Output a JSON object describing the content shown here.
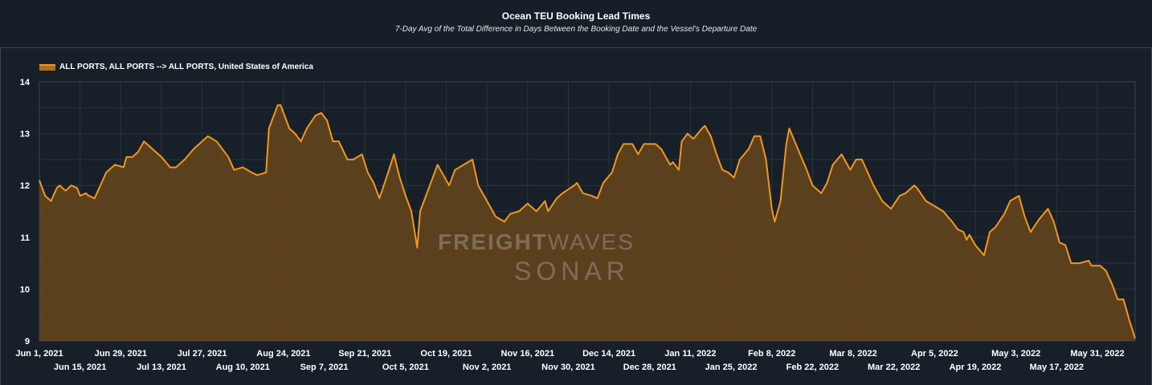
{
  "chart_data": {
    "type": "area",
    "title": "Ocean TEU Booking Lead Times",
    "subtitle": "7-Day  Avg of the Total Difference in Days Between the Booking Date and the Vessel's Departure Date",
    "xlabel": "",
    "ylabel": "",
    "xlim": [
      "2021-06-01",
      "2022-06-13"
    ],
    "ylim": [
      9,
      14
    ],
    "yticks": [
      9,
      10,
      11,
      12,
      13,
      14
    ],
    "xticks_row1": [
      "Jun 1, 2021",
      "Jun 29, 2021",
      "Jul 27, 2021",
      "Aug 24, 2021",
      "Sep 21, 2021",
      "Oct 19, 2021",
      "Nov 16, 2021",
      "Dec 14, 2021",
      "Jan 11, 2022",
      "Feb 8, 2022",
      "Mar 8, 2022",
      "Apr 5, 2022",
      "May 3, 2022",
      "May 31, 2022"
    ],
    "xticks_row2": [
      "Jun 15, 2021",
      "Jul 13, 2021",
      "Aug 10, 2021",
      "Sep 7, 2021",
      "Oct 5, 2021",
      "Nov 2, 2021",
      "Nov 30, 2021",
      "Dec 28, 2021",
      "Jan 25, 2022",
      "Feb 22, 2022",
      "Mar 22, 2022",
      "Apr 19, 2022",
      "May 17, 2022"
    ],
    "grid": true,
    "legend_position": "top-left",
    "colors": {
      "line": "#f2961e",
      "fill": "#5f421e",
      "background": "#172029",
      "grid": "#2a3440"
    },
    "series": [
      {
        "name": "ALL PORTS, ALL PORTS --> ALL PORTS, United States of America",
        "points": [
          [
            "2021-06-01",
            12.1
          ],
          [
            "2021-06-03",
            11.8
          ],
          [
            "2021-06-05",
            11.7
          ],
          [
            "2021-06-07",
            11.95
          ],
          [
            "2021-06-08",
            12.0
          ],
          [
            "2021-06-10",
            11.9
          ],
          [
            "2021-06-12",
            12.0
          ],
          [
            "2021-06-14",
            11.95
          ],
          [
            "2021-06-15",
            11.8
          ],
          [
            "2021-06-17",
            11.85
          ],
          [
            "2021-06-18",
            11.8
          ],
          [
            "2021-06-20",
            11.75
          ],
          [
            "2021-06-22",
            12.0
          ],
          [
            "2021-06-24",
            12.25
          ],
          [
            "2021-06-27",
            12.4
          ],
          [
            "2021-06-30",
            12.35
          ],
          [
            "2021-07-01",
            12.55
          ],
          [
            "2021-07-03",
            12.55
          ],
          [
            "2021-07-05",
            12.65
          ],
          [
            "2021-07-07",
            12.85
          ],
          [
            "2021-07-10",
            12.7
          ],
          [
            "2021-07-13",
            12.55
          ],
          [
            "2021-07-16",
            12.35
          ],
          [
            "2021-07-18",
            12.35
          ],
          [
            "2021-07-21",
            12.5
          ],
          [
            "2021-07-24",
            12.7
          ],
          [
            "2021-07-26",
            12.8
          ],
          [
            "2021-07-29",
            12.95
          ],
          [
            "2021-08-01",
            12.85
          ],
          [
            "2021-08-05",
            12.55
          ],
          [
            "2021-08-07",
            12.3
          ],
          [
            "2021-08-10",
            12.35
          ],
          [
            "2021-08-13",
            12.25
          ],
          [
            "2021-08-15",
            12.2
          ],
          [
            "2021-08-18",
            12.25
          ],
          [
            "2021-08-19",
            13.1
          ],
          [
            "2021-08-22",
            13.55
          ],
          [
            "2021-08-23",
            13.55
          ],
          [
            "2021-08-26",
            13.1
          ],
          [
            "2021-08-28",
            13.0
          ],
          [
            "2021-08-30",
            12.85
          ],
          [
            "2021-09-01",
            13.1
          ],
          [
            "2021-09-04",
            13.35
          ],
          [
            "2021-09-06",
            13.4
          ],
          [
            "2021-09-08",
            13.25
          ],
          [
            "2021-09-10",
            12.85
          ],
          [
            "2021-09-12",
            12.85
          ],
          [
            "2021-09-15",
            12.5
          ],
          [
            "2021-09-17",
            12.5
          ],
          [
            "2021-09-20",
            12.6
          ],
          [
            "2021-09-22",
            12.25
          ],
          [
            "2021-09-24",
            12.05
          ],
          [
            "2021-09-26",
            11.75
          ],
          [
            "2021-09-29",
            12.25
          ],
          [
            "2021-10-01",
            12.6
          ],
          [
            "2021-10-03",
            12.15
          ],
          [
            "2021-10-05",
            11.8
          ],
          [
            "2021-10-07",
            11.5
          ],
          [
            "2021-10-09",
            10.8
          ],
          [
            "2021-10-10",
            11.5
          ],
          [
            "2021-10-12",
            11.8
          ],
          [
            "2021-10-16",
            12.4
          ],
          [
            "2021-10-18",
            12.2
          ],
          [
            "2021-10-20",
            12.0
          ],
          [
            "2021-10-22",
            12.3
          ],
          [
            "2021-10-25",
            12.4
          ],
          [
            "2021-10-28",
            12.5
          ],
          [
            "2021-10-30",
            12.0
          ],
          [
            "2021-11-02",
            11.7
          ],
          [
            "2021-11-05",
            11.4
          ],
          [
            "2021-11-08",
            11.3
          ],
          [
            "2021-11-10",
            11.45
          ],
          [
            "2021-11-13",
            11.5
          ],
          [
            "2021-11-16",
            11.65
          ],
          [
            "2021-11-19",
            11.5
          ],
          [
            "2021-11-22",
            11.7
          ],
          [
            "2021-11-23",
            11.5
          ],
          [
            "2021-11-26",
            11.75
          ],
          [
            "2021-11-28",
            11.85
          ],
          [
            "2021-12-02",
            12.0
          ],
          [
            "2021-12-03",
            12.05
          ],
          [
            "2021-12-05",
            11.85
          ],
          [
            "2021-12-08",
            11.8
          ],
          [
            "2021-12-10",
            11.75
          ],
          [
            "2021-12-12",
            12.05
          ],
          [
            "2021-12-15",
            12.25
          ],
          [
            "2021-12-17",
            12.6
          ],
          [
            "2021-12-19",
            12.8
          ],
          [
            "2021-12-22",
            12.8
          ],
          [
            "2021-12-24",
            12.6
          ],
          [
            "2021-12-26",
            12.8
          ],
          [
            "2021-12-30",
            12.8
          ],
          [
            "2022-01-01",
            12.7
          ],
          [
            "2022-01-04",
            12.4
          ],
          [
            "2022-01-05",
            12.45
          ],
          [
            "2022-01-07",
            12.3
          ],
          [
            "2022-01-08",
            12.85
          ],
          [
            "2022-01-10",
            13.0
          ],
          [
            "2022-01-12",
            12.9
          ],
          [
            "2022-01-15",
            13.1
          ],
          [
            "2022-01-16",
            13.15
          ],
          [
            "2022-01-18",
            12.95
          ],
          [
            "2022-01-20",
            12.6
          ],
          [
            "2022-01-22",
            12.3
          ],
          [
            "2022-01-24",
            12.25
          ],
          [
            "2022-01-26",
            12.15
          ],
          [
            "2022-01-28",
            12.5
          ],
          [
            "2022-01-31",
            12.7
          ],
          [
            "2022-02-02",
            12.95
          ],
          [
            "2022-02-04",
            12.95
          ],
          [
            "2022-02-06",
            12.5
          ],
          [
            "2022-02-08",
            11.55
          ],
          [
            "2022-02-09",
            11.3
          ],
          [
            "2022-02-11",
            11.7
          ],
          [
            "2022-02-13",
            12.8
          ],
          [
            "2022-02-14",
            13.1
          ],
          [
            "2022-02-17",
            12.7
          ],
          [
            "2022-02-20",
            12.3
          ],
          [
            "2022-02-22",
            12.0
          ],
          [
            "2022-02-25",
            11.85
          ],
          [
            "2022-02-27",
            12.05
          ],
          [
            "2022-03-01",
            12.4
          ],
          [
            "2022-03-04",
            12.6
          ],
          [
            "2022-03-07",
            12.3
          ],
          [
            "2022-03-09",
            12.5
          ],
          [
            "2022-03-11",
            12.5
          ],
          [
            "2022-03-13",
            12.25
          ],
          [
            "2022-03-15",
            12.0
          ],
          [
            "2022-03-18",
            11.7
          ],
          [
            "2022-03-21",
            11.55
          ],
          [
            "2022-03-24",
            11.8
          ],
          [
            "2022-03-26",
            11.85
          ],
          [
            "2022-03-29",
            12.0
          ],
          [
            "2022-03-30",
            11.95
          ],
          [
            "2022-04-02",
            11.7
          ],
          [
            "2022-04-05",
            11.6
          ],
          [
            "2022-04-08",
            11.5
          ],
          [
            "2022-04-11",
            11.3
          ],
          [
            "2022-04-13",
            11.15
          ],
          [
            "2022-04-15",
            11.1
          ],
          [
            "2022-04-16",
            10.95
          ],
          [
            "2022-04-17",
            11.05
          ],
          [
            "2022-04-19",
            10.85
          ],
          [
            "2022-04-22",
            10.65
          ],
          [
            "2022-04-24",
            11.1
          ],
          [
            "2022-04-26",
            11.2
          ],
          [
            "2022-04-29",
            11.45
          ],
          [
            "2022-05-01",
            11.7
          ],
          [
            "2022-05-04",
            11.8
          ],
          [
            "2022-05-06",
            11.4
          ],
          [
            "2022-05-08",
            11.1
          ],
          [
            "2022-05-11",
            11.35
          ],
          [
            "2022-05-14",
            11.55
          ],
          [
            "2022-05-16",
            11.3
          ],
          [
            "2022-05-18",
            10.9
          ],
          [
            "2022-05-20",
            10.85
          ],
          [
            "2022-05-22",
            10.5
          ],
          [
            "2022-05-25",
            10.5
          ],
          [
            "2022-05-28",
            10.55
          ],
          [
            "2022-05-29",
            10.45
          ],
          [
            "2022-06-01",
            10.45
          ],
          [
            "2022-06-03",
            10.35
          ],
          [
            "2022-06-05",
            10.1
          ],
          [
            "2022-06-07",
            9.8
          ],
          [
            "2022-06-09",
            9.8
          ],
          [
            "2022-06-11",
            9.4
          ],
          [
            "2022-06-13",
            9.05
          ]
        ]
      }
    ]
  },
  "watermark": {
    "line1_bold": "FREIGHT",
    "line1_light": "WAVES",
    "line2": "SONAR"
  }
}
